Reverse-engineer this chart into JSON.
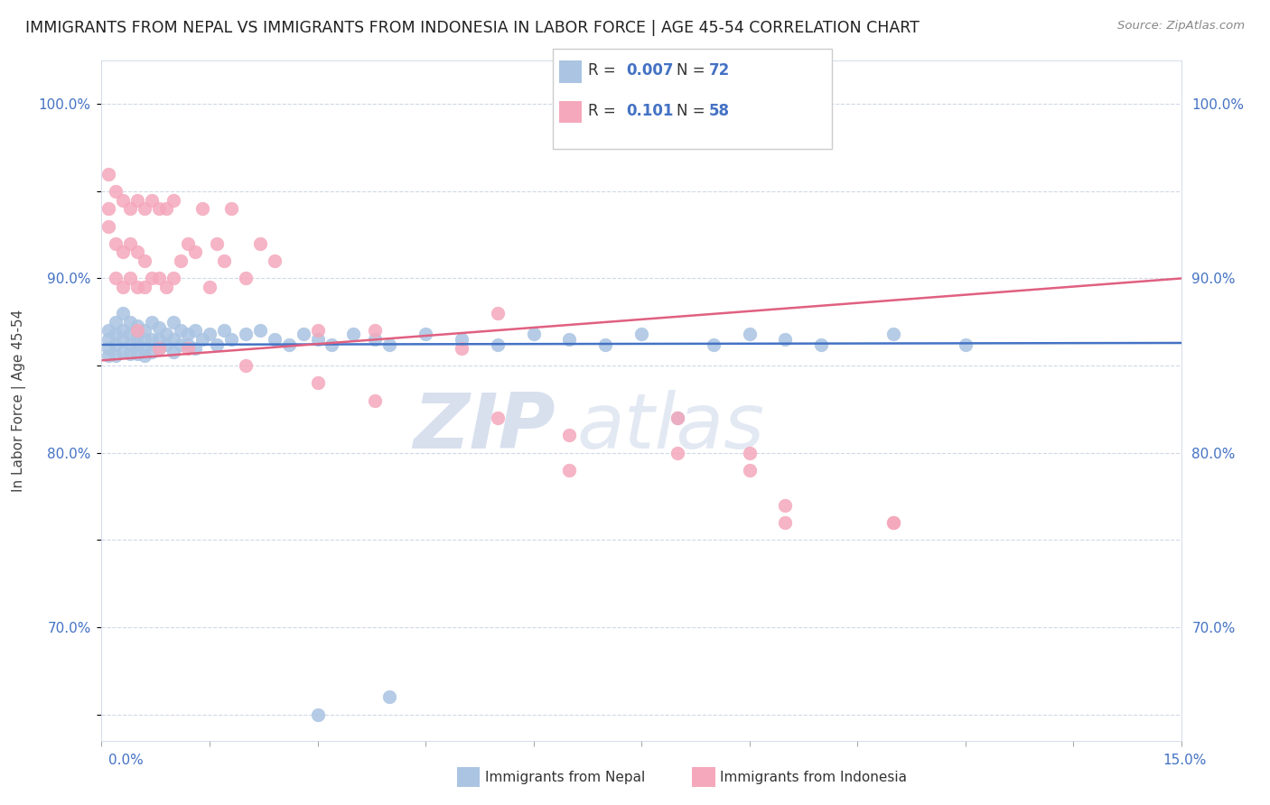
{
  "title": "IMMIGRANTS FROM NEPAL VS IMMIGRANTS FROM INDONESIA IN LABOR FORCE | AGE 45-54 CORRELATION CHART",
  "source": "Source: ZipAtlas.com",
  "ylabel": "In Labor Force | Age 45-54",
  "xlim": [
    0.0,
    0.15
  ],
  "ylim": [
    0.635,
    1.025
  ],
  "watermark_line1": "ZIP",
  "watermark_line2": "atlas",
  "nepal_R": "0.007",
  "nepal_N": "72",
  "indonesia_R": "0.101",
  "indonesia_N": "58",
  "nepal_color": "#aac4e2",
  "indonesia_color": "#f5a8bc",
  "nepal_line_color": "#4472c4",
  "indonesia_line_color": "#e06080",
  "background_color": "#ffffff",
  "grid_color": "#d0d8e8",
  "ytick_positions": [
    0.65,
    0.7,
    0.75,
    0.8,
    0.85,
    0.9,
    0.95,
    1.0
  ],
  "ytick_labels": [
    "",
    "70.0%",
    "",
    "80.0%",
    "",
    "90.0%",
    "",
    "100.0%"
  ],
  "nepal_line_y0": 0.862,
  "nepal_line_y1": 0.863,
  "indonesia_line_y0": 0.853,
  "indonesia_line_y1": 0.9,
  "nepal_x": [
    0.001,
    0.001,
    0.001,
    0.001,
    0.002,
    0.002,
    0.002,
    0.002,
    0.003,
    0.003,
    0.003,
    0.003,
    0.004,
    0.004,
    0.004,
    0.004,
    0.005,
    0.005,
    0.005,
    0.005,
    0.006,
    0.006,
    0.006,
    0.006,
    0.007,
    0.007,
    0.007,
    0.008,
    0.008,
    0.008,
    0.009,
    0.009,
    0.01,
    0.01,
    0.01,
    0.011,
    0.011,
    0.012,
    0.012,
    0.013,
    0.013,
    0.014,
    0.015,
    0.016,
    0.017,
    0.018,
    0.02,
    0.022,
    0.024,
    0.026,
    0.028,
    0.03,
    0.032,
    0.035,
    0.038,
    0.04,
    0.045,
    0.05,
    0.055,
    0.06,
    0.065,
    0.07,
    0.075,
    0.08,
    0.085,
    0.09,
    0.095,
    0.1,
    0.11,
    0.12,
    0.04,
    0.03
  ],
  "nepal_y": [
    0.87,
    0.865,
    0.86,
    0.856,
    0.875,
    0.868,
    0.862,
    0.856,
    0.88,
    0.87,
    0.865,
    0.858,
    0.875,
    0.868,
    0.862,
    0.857,
    0.873,
    0.867,
    0.862,
    0.857,
    0.87,
    0.865,
    0.86,
    0.856,
    0.875,
    0.865,
    0.858,
    0.872,
    0.865,
    0.86,
    0.868,
    0.862,
    0.875,
    0.865,
    0.858,
    0.87,
    0.862,
    0.868,
    0.862,
    0.87,
    0.86,
    0.865,
    0.868,
    0.862,
    0.87,
    0.865,
    0.868,
    0.87,
    0.865,
    0.862,
    0.868,
    0.865,
    0.862,
    0.868,
    0.865,
    0.862,
    0.868,
    0.865,
    0.862,
    0.868,
    0.865,
    0.862,
    0.868,
    0.82,
    0.862,
    0.868,
    0.865,
    0.862,
    0.868,
    0.862,
    0.66,
    0.65
  ],
  "indonesia_x": [
    0.001,
    0.001,
    0.001,
    0.002,
    0.002,
    0.002,
    0.003,
    0.003,
    0.003,
    0.004,
    0.004,
    0.004,
    0.005,
    0.005,
    0.005,
    0.006,
    0.006,
    0.006,
    0.007,
    0.007,
    0.008,
    0.008,
    0.009,
    0.009,
    0.01,
    0.01,
    0.011,
    0.012,
    0.013,
    0.014,
    0.015,
    0.016,
    0.017,
    0.018,
    0.02,
    0.022,
    0.024,
    0.03,
    0.038,
    0.05,
    0.055,
    0.065,
    0.08,
    0.09,
    0.095,
    0.11,
    0.005,
    0.008,
    0.012,
    0.02,
    0.03,
    0.038,
    0.055,
    0.065,
    0.08,
    0.09,
    0.095,
    0.11
  ],
  "indonesia_y": [
    0.96,
    0.94,
    0.93,
    0.95,
    0.92,
    0.9,
    0.945,
    0.915,
    0.895,
    0.94,
    0.92,
    0.9,
    0.945,
    0.915,
    0.895,
    0.94,
    0.91,
    0.895,
    0.945,
    0.9,
    0.94,
    0.9,
    0.94,
    0.895,
    0.945,
    0.9,
    0.91,
    0.92,
    0.915,
    0.94,
    0.895,
    0.92,
    0.91,
    0.94,
    0.9,
    0.92,
    0.91,
    0.87,
    0.87,
    0.86,
    0.88,
    0.79,
    0.82,
    0.8,
    0.76,
    0.76,
    0.87,
    0.86,
    0.86,
    0.85,
    0.84,
    0.83,
    0.82,
    0.81,
    0.8,
    0.79,
    0.77,
    0.76
  ]
}
